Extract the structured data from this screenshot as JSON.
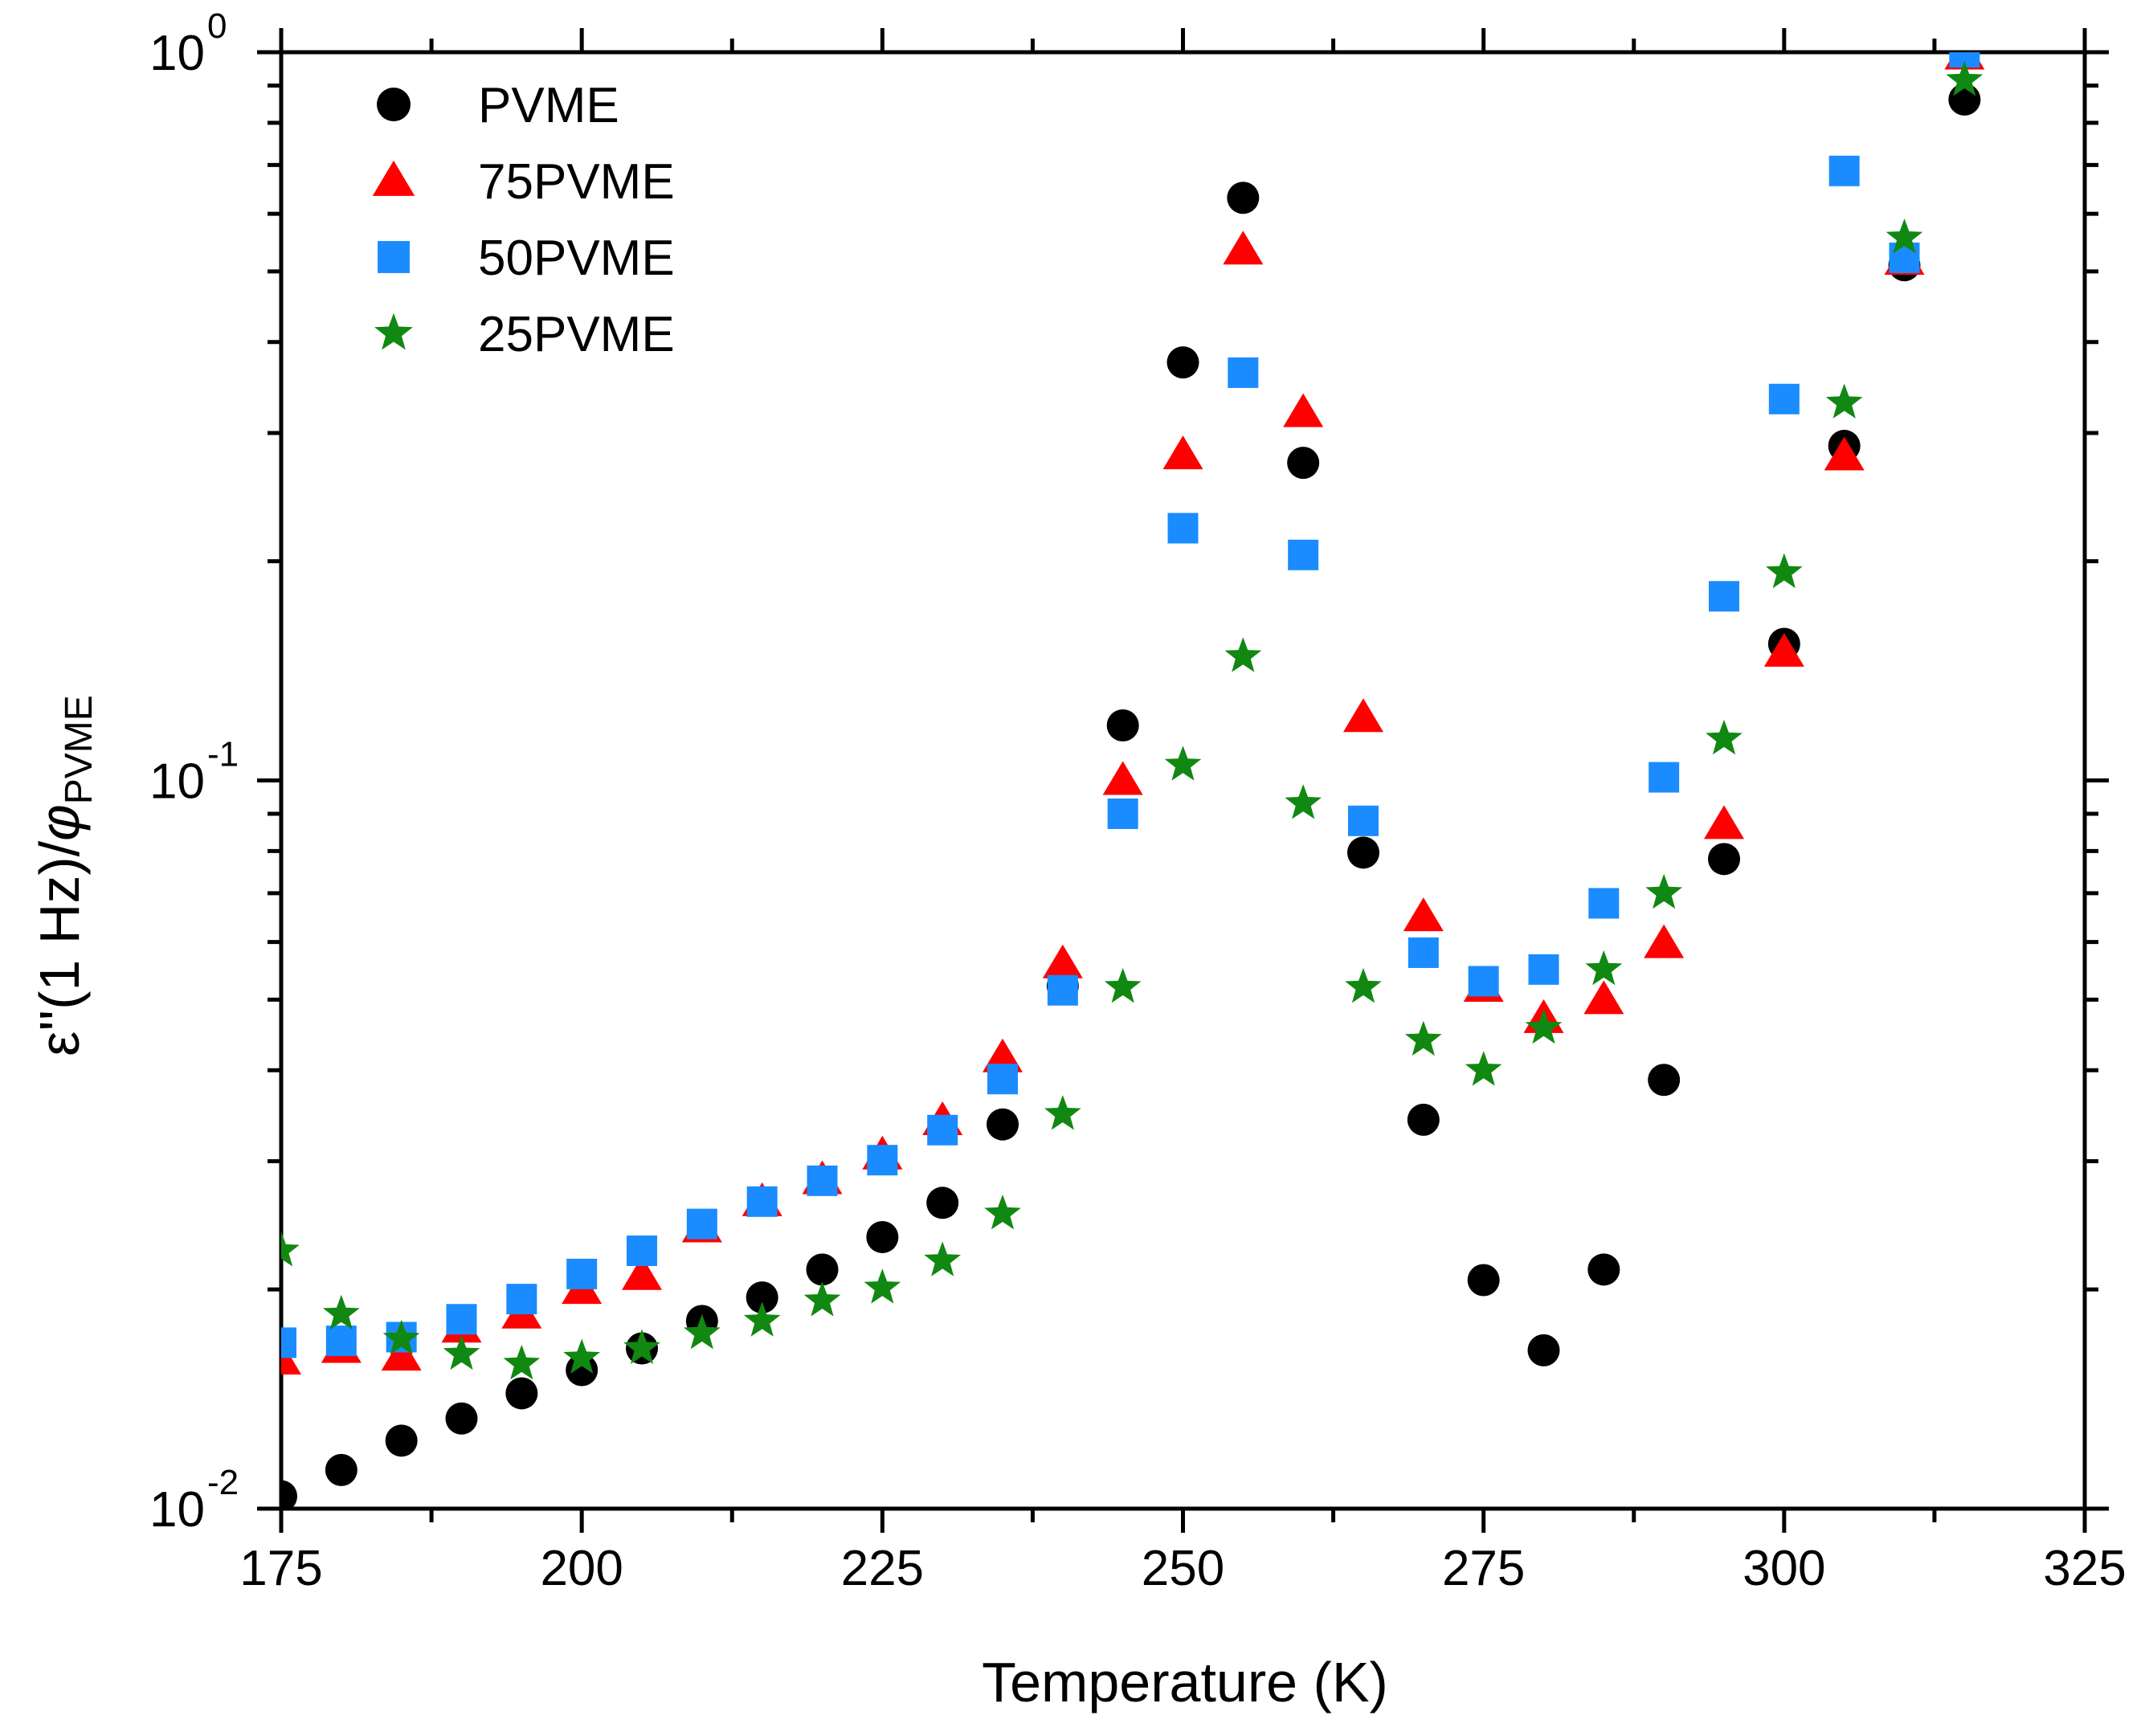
{
  "chart_data": {
    "type": "scatter",
    "title": "",
    "xlabel": "Temperature (K)",
    "ylabel": {
      "main": "ε''(1 Hz)/",
      "phi": "φ",
      "sub": "PVME"
    },
    "x_scale": "linear",
    "y_scale": "log",
    "xlim": [
      175,
      325
    ],
    "ylim": [
      0.01,
      1
    ],
    "x_ticks": [
      175,
      200,
      225,
      250,
      275,
      300,
      325
    ],
    "x_tick_labels": [
      "175",
      "200",
      "225",
      "250",
      "275",
      "300",
      "325"
    ],
    "y_ticks": [
      {
        "value": 0.01,
        "base": "10",
        "exp": "-2"
      },
      {
        "value": 0.1,
        "base": "10",
        "exp": "-1"
      },
      {
        "value": 1,
        "base": "10",
        "exp": "0"
      }
    ],
    "grid": false,
    "legend_position": "top-left",
    "series": [
      {
        "name": "PVME",
        "marker": "circle",
        "color": "#000000",
        "points": [
          [
            175,
            0.0104
          ],
          [
            180,
            0.0113
          ],
          [
            185,
            0.0124
          ],
          [
            190,
            0.0133
          ],
          [
            195,
            0.0144
          ],
          [
            200,
            0.0155
          ],
          [
            205,
            0.0166
          ],
          [
            210,
            0.0181
          ],
          [
            215,
            0.0195
          ],
          [
            220,
            0.0213
          ],
          [
            225,
            0.0236
          ],
          [
            230,
            0.0263
          ],
          [
            235,
            0.0337
          ],
          [
            240,
            0.0522
          ],
          [
            245,
            0.119
          ],
          [
            250,
            0.375
          ],
          [
            255,
            0.631
          ],
          [
            260,
            0.273
          ],
          [
            265,
            0.0796
          ],
          [
            270,
            0.0342
          ],
          [
            275,
            0.0206
          ],
          [
            280,
            0.0165
          ],
          [
            285,
            0.0213
          ],
          [
            290,
            0.0388
          ],
          [
            295,
            0.078
          ],
          [
            300,
            0.154
          ],
          [
            305,
            0.288
          ],
          [
            310,
            0.51
          ],
          [
            315,
            0.861
          ]
        ]
      },
      {
        "name": "75PVME",
        "marker": "triangle",
        "color": "#ff0000",
        "points": [
          [
            175,
            0.016
          ],
          [
            180,
            0.0166
          ],
          [
            185,
            0.0162
          ],
          [
            190,
            0.0177
          ],
          [
            195,
            0.0185
          ],
          [
            200,
            0.02
          ],
          [
            205,
            0.0209
          ],
          [
            210,
            0.0243
          ],
          [
            215,
            0.0264
          ],
          [
            220,
            0.0283
          ],
          [
            225,
            0.0306
          ],
          [
            230,
            0.0341
          ],
          [
            235,
            0.0416
          ],
          [
            240,
            0.056
          ],
          [
            245,
            0.1
          ],
          [
            250,
            0.28
          ],
          [
            255,
            0.535
          ],
          [
            260,
            0.32
          ],
          [
            265,
            0.122
          ],
          [
            270,
            0.065
          ],
          [
            275,
            0.052
          ],
          [
            280,
            0.0471
          ],
          [
            285,
            0.05
          ],
          [
            290,
            0.0597
          ],
          [
            295,
            0.087
          ],
          [
            300,
            0.15
          ],
          [
            305,
            0.279
          ],
          [
            310,
            0.518
          ],
          [
            315,
            0.991
          ]
        ]
      },
      {
        "name": "50PVME",
        "marker": "square",
        "color": "#1a8cff",
        "points": [
          [
            175,
            0.0169
          ],
          [
            180,
            0.017
          ],
          [
            185,
            0.0172
          ],
          [
            190,
            0.0182
          ],
          [
            195,
            0.0194
          ],
          [
            200,
            0.021
          ],
          [
            205,
            0.0226
          ],
          [
            210,
            0.0246
          ],
          [
            215,
            0.0264
          ],
          [
            220,
            0.0282
          ],
          [
            225,
            0.0301
          ],
          [
            230,
            0.0331
          ],
          [
            235,
            0.0389
          ],
          [
            240,
            0.0515
          ],
          [
            245,
            0.09
          ],
          [
            250,
            0.222
          ],
          [
            255,
            0.363
          ],
          [
            260,
            0.204
          ],
          [
            265,
            0.088
          ],
          [
            270,
            0.058
          ],
          [
            275,
            0.053
          ],
          [
            280,
            0.055
          ],
          [
            285,
            0.0678
          ],
          [
            290,
            0.101
          ],
          [
            295,
            0.179
          ],
          [
            300,
            0.334
          ],
          [
            305,
            0.687
          ],
          [
            310,
            0.522
          ],
          [
            315,
            1.0
          ]
        ]
      },
      {
        "name": "25PVME",
        "marker": "star",
        "color": "#118811",
        "points": [
          [
            175,
            0.0226
          ],
          [
            180,
            0.0185
          ],
          [
            185,
            0.0171
          ],
          [
            190,
            0.0163
          ],
          [
            195,
            0.0158
          ],
          [
            200,
            0.0161
          ],
          [
            205,
            0.0166
          ],
          [
            210,
            0.0174
          ],
          [
            215,
            0.0181
          ],
          [
            220,
            0.0193
          ],
          [
            225,
            0.0201
          ],
          [
            230,
            0.0219
          ],
          [
            235,
            0.0254
          ],
          [
            240,
            0.0348
          ],
          [
            245,
            0.052
          ],
          [
            250,
            0.105
          ],
          [
            255,
            0.148
          ],
          [
            260,
            0.093
          ],
          [
            265,
            0.052
          ],
          [
            270,
            0.044
          ],
          [
            275,
            0.04
          ],
          [
            280,
            0.0457
          ],
          [
            285,
            0.055
          ],
          [
            290,
            0.07
          ],
          [
            295,
            0.114
          ],
          [
            300,
            0.193
          ],
          [
            305,
            0.33
          ],
          [
            310,
            0.556
          ],
          [
            315,
            0.915
          ]
        ]
      }
    ]
  }
}
